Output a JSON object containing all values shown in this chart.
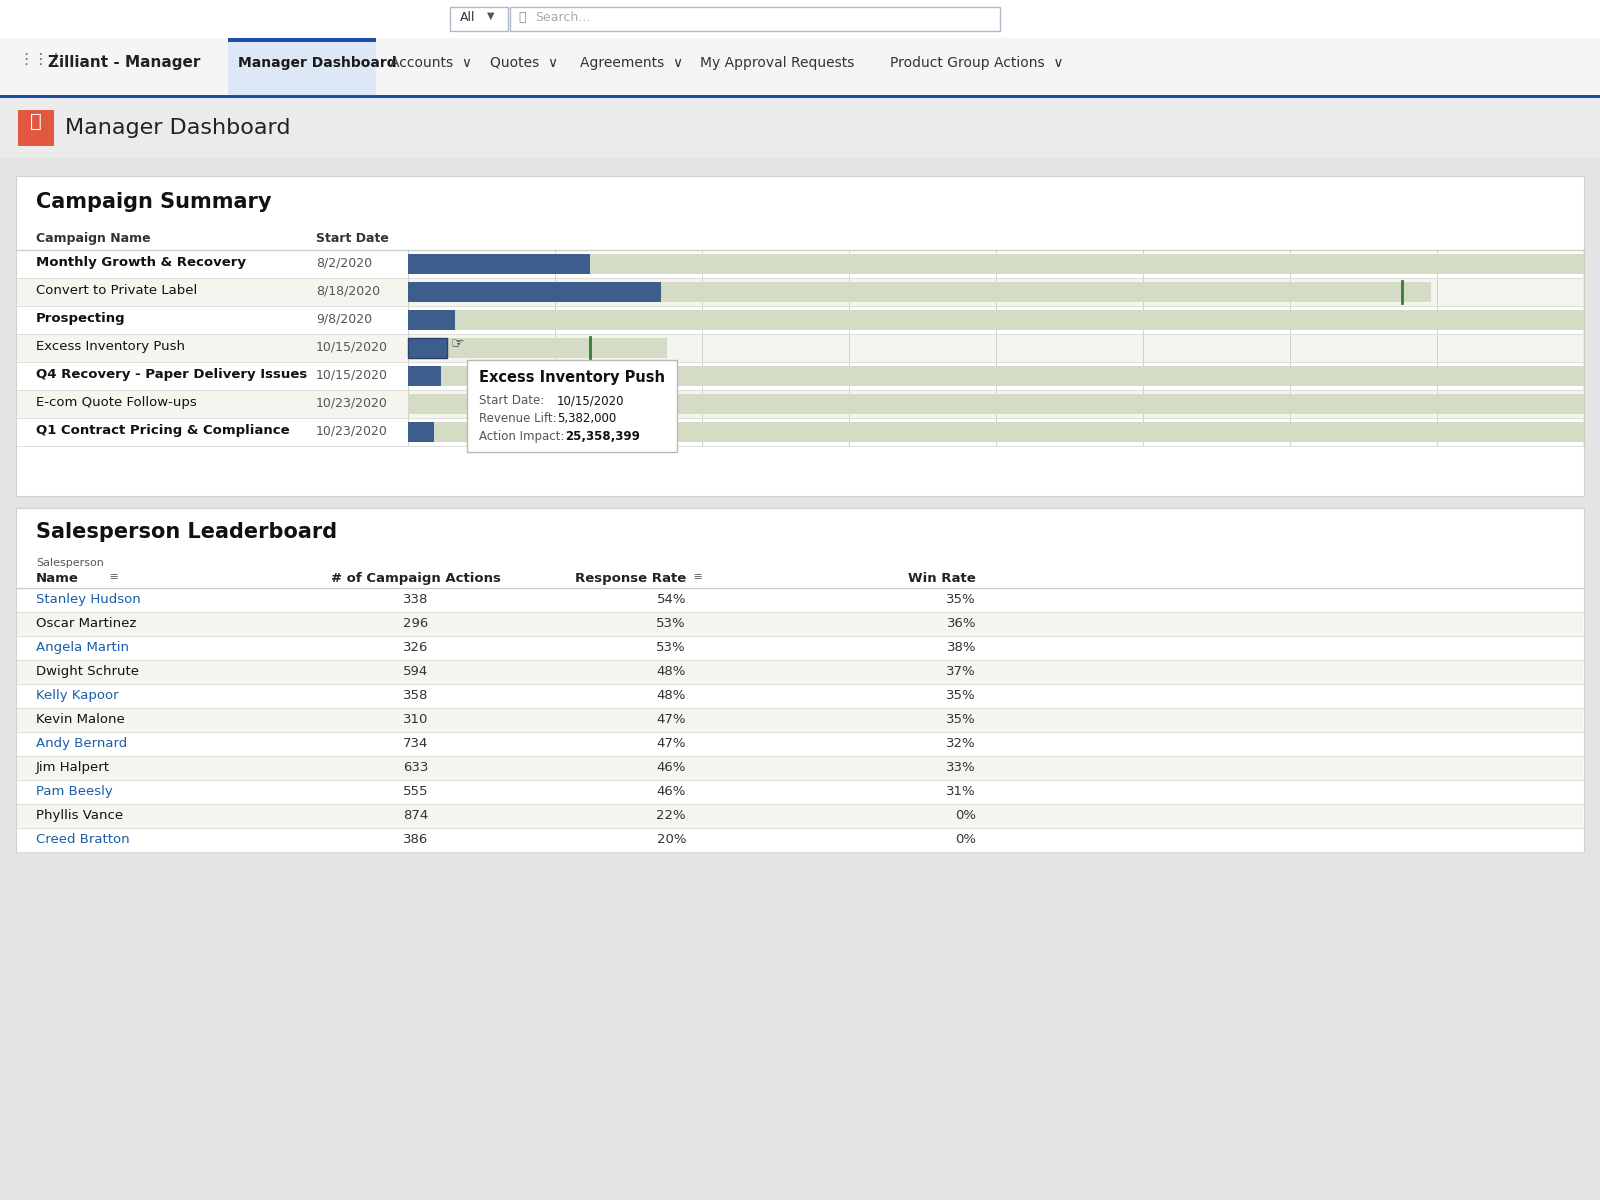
{
  "app_name": "Zilliant - Manager",
  "page_title": "Manager Dashboard",
  "section1_title": "Campaign Summary",
  "campaigns": [
    {
      "name": "Monthly Growth & Recovery",
      "date": "8/2/2020",
      "bar_pct": 0.155,
      "bg_pct": 1.0,
      "has_green_line": false,
      "tooltip_row": false
    },
    {
      "name": "Convert to Private Label",
      "date": "8/18/2020",
      "bar_pct": 0.215,
      "bg_pct": 0.87,
      "has_green_line": true,
      "tooltip_row": false
    },
    {
      "name": "Prospecting",
      "date": "9/8/2020",
      "bar_pct": 0.04,
      "bg_pct": 1.0,
      "has_green_line": false,
      "tooltip_row": false
    },
    {
      "name": "Excess Inventory Push",
      "date": "10/15/2020",
      "bar_pct": 0.033,
      "bg_pct": 0.22,
      "has_green_line": true,
      "tooltip_row": true
    },
    {
      "name": "Q4 Recovery - Paper Delivery Issues",
      "date": "10/15/2020",
      "bar_pct": 0.028,
      "bg_pct": 1.0,
      "has_green_line": false,
      "tooltip_row": false
    },
    {
      "name": "E-com Quote Follow-ups",
      "date": "10/23/2020",
      "bar_pct": 0.0,
      "bg_pct": 1.0,
      "has_green_line": false,
      "tooltip_row": false
    },
    {
      "name": "Q1 Contract Pricing & Compliance",
      "date": "10/23/2020",
      "bar_pct": 0.022,
      "bg_pct": 1.0,
      "has_green_line": false,
      "tooltip_row": false
    }
  ],
  "bar_color": "#3d5e8c",
  "bg_bar_color": "#d5dcc6",
  "green_line_color": "#3a7a35",
  "grid_line_color": "#c8cfba",
  "tooltip": {
    "title": "Excess Inventory Push",
    "start_date": "10/15/2020",
    "revenue_lift": "5,382,000",
    "action_impact": "25,358,399"
  },
  "section2_title": "Salesperson Leaderboard",
  "leaderboard_data": [
    [
      "Stanley Hudson",
      "338",
      "54%",
      "35%"
    ],
    [
      "Oscar Martinez",
      "296",
      "53%",
      "36%"
    ],
    [
      "Angela Martin",
      "326",
      "53%",
      "38%"
    ],
    [
      "Dwight Schrute",
      "594",
      "48%",
      "37%"
    ],
    [
      "Kelly Kapoor",
      "358",
      "48%",
      "35%"
    ],
    [
      "Kevin Malone",
      "310",
      "47%",
      "35%"
    ],
    [
      "Andy Bernard",
      "734",
      "47%",
      "32%"
    ],
    [
      "Jim Halpert",
      "633",
      "46%",
      "33%"
    ],
    [
      "Pam Beesly",
      "555",
      "46%",
      "31%"
    ],
    [
      "Phyllis Vance",
      "874",
      "22%",
      "0%"
    ],
    [
      "Creed Bratton",
      "386",
      "20%",
      "0%"
    ]
  ],
  "link_rows": [
    0,
    2,
    4,
    6,
    8,
    10
  ],
  "page_bg": "#e4e4e4",
  "white": "#ffffff",
  "nav_bg": "#f5f5f5",
  "nav_active_bg": "#dce8f5",
  "nav_blue": "#1b4fa8",
  "header_bg": "#ebebeb",
  "icon_red": "#e05840",
  "row_alt": "#f4f5ef",
  "border_color": "#d0d0d0",
  "text_dark": "#1a1a1a",
  "text_gray": "#666666",
  "text_blue": "#1a5da8",
  "text_nav": "#333333"
}
